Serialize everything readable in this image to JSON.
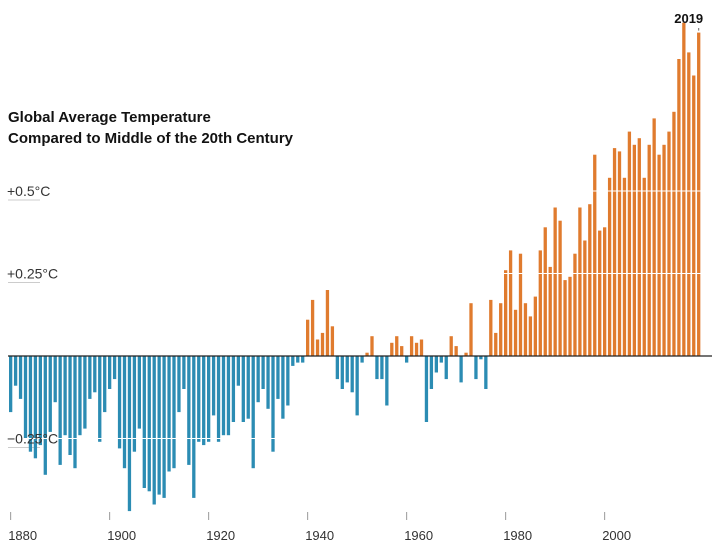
{
  "chart_data": {
    "type": "bar",
    "title_line1": "Global Average Temperature",
    "title_line2": "Compared to Middle of the 20th Century",
    "x": [
      1880,
      1881,
      1882,
      1883,
      1884,
      1885,
      1886,
      1887,
      1888,
      1889,
      1890,
      1891,
      1892,
      1893,
      1894,
      1895,
      1896,
      1897,
      1898,
      1899,
      1900,
      1901,
      1902,
      1903,
      1904,
      1905,
      1906,
      1907,
      1908,
      1909,
      1910,
      1911,
      1912,
      1913,
      1914,
      1915,
      1916,
      1917,
      1918,
      1919,
      1920,
      1921,
      1922,
      1923,
      1924,
      1925,
      1926,
      1927,
      1928,
      1929,
      1930,
      1931,
      1932,
      1933,
      1934,
      1935,
      1936,
      1937,
      1938,
      1939,
      1940,
      1941,
      1942,
      1943,
      1944,
      1945,
      1946,
      1947,
      1948,
      1949,
      1950,
      1951,
      1952,
      1953,
      1954,
      1955,
      1956,
      1957,
      1958,
      1959,
      1960,
      1961,
      1962,
      1963,
      1964,
      1965,
      1966,
      1967,
      1968,
      1969,
      1970,
      1971,
      1972,
      1973,
      1974,
      1975,
      1976,
      1977,
      1978,
      1979,
      1980,
      1981,
      1982,
      1983,
      1984,
      1985,
      1986,
      1987,
      1988,
      1989,
      1990,
      1991,
      1992,
      1993,
      1994,
      1995,
      1996,
      1997,
      1998,
      1999,
      2000,
      2001,
      2002,
      2003,
      2004,
      2005,
      2006,
      2007,
      2008,
      2009,
      2010,
      2011,
      2012,
      2013,
      2014,
      2015,
      2016,
      2017,
      2018,
      2019
    ],
    "values": [
      -0.17,
      -0.09,
      -0.13,
      -0.25,
      -0.29,
      -0.31,
      -0.27,
      -0.36,
      -0.23,
      -0.14,
      -0.33,
      -0.24,
      -0.3,
      -0.34,
      -0.24,
      -0.22,
      -0.13,
      -0.11,
      -0.26,
      -0.17,
      -0.1,
      -0.07,
      -0.28,
      -0.34,
      -0.47,
      -0.29,
      -0.22,
      -0.4,
      -0.41,
      -0.45,
      -0.42,
      -0.43,
      -0.35,
      -0.34,
      -0.17,
      -0.1,
      -0.33,
      -0.43,
      -0.26,
      -0.27,
      -0.26,
      -0.18,
      -0.26,
      -0.24,
      -0.24,
      -0.2,
      -0.09,
      -0.2,
      -0.19,
      -0.34,
      -0.14,
      -0.1,
      -0.16,
      -0.29,
      -0.13,
      -0.19,
      -0.15,
      -0.03,
      -0.02,
      -0.02,
      0.11,
      0.17,
      0.05,
      0.07,
      0.2,
      0.09,
      -0.07,
      -0.1,
      -0.08,
      -0.11,
      -0.18,
      -0.02,
      0.01,
      0.06,
      -0.07,
      -0.07,
      -0.15,
      0.04,
      0.06,
      0.03,
      -0.02,
      0.06,
      0.04,
      0.05,
      -0.2,
      -0.1,
      -0.05,
      -0.02,
      -0.07,
      0.06,
      0.03,
      -0.08,
      0.01,
      0.16,
      -0.07,
      -0.01,
      -0.1,
      0.17,
      0.07,
      0.16,
      0.26,
      0.32,
      0.14,
      0.31,
      0.16,
      0.12,
      0.18,
      0.32,
      0.39,
      0.27,
      0.45,
      0.41,
      0.23,
      0.24,
      0.31,
      0.45,
      0.35,
      0.46,
      0.61,
      0.38,
      0.39,
      0.54,
      0.63,
      0.62,
      0.54,
      0.68,
      0.64,
      0.66,
      0.54,
      0.64,
      0.72,
      0.61,
      0.64,
      0.68,
      0.74,
      0.9,
      1.01,
      0.92,
      0.85,
      0.98
    ],
    "highlight": {
      "year": 2019,
      "label": "2019"
    },
    "y_ticks": [
      {
        "value": 0.5,
        "label": "+0.5°C"
      },
      {
        "value": 0.25,
        "label": "+0.25°C"
      },
      {
        "value": -0.25,
        "label": "−0.25°C"
      }
    ],
    "x_ticks": [
      1880,
      1900,
      1920,
      1940,
      1960,
      1980,
      2000
    ],
    "colors": {
      "positive": "#E07B2E",
      "negative": "#2B8CB3",
      "baseline": "#222222",
      "axis": "#999999"
    },
    "grid": true
  }
}
